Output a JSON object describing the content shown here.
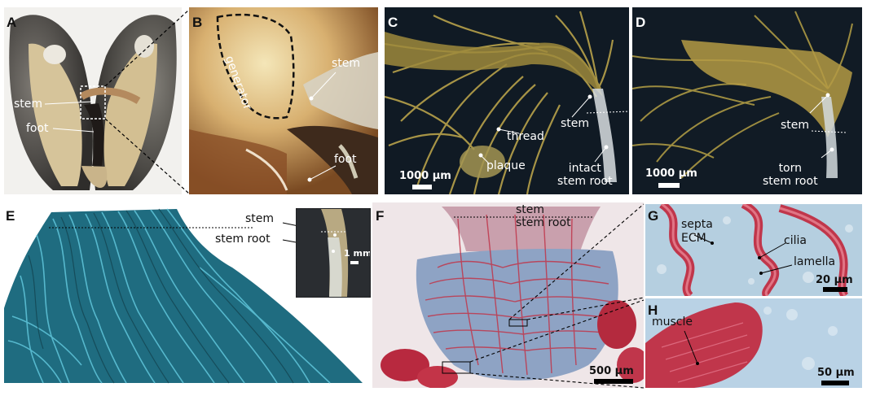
{
  "panels": [
    {
      "letter": "A",
      "labels": [
        "stem",
        "foot"
      ]
    },
    {
      "letter": "B",
      "labels": [
        "generator",
        "stem",
        "foot"
      ]
    },
    {
      "letter": "C",
      "labels": [
        "thread",
        "stem",
        "plaque",
        "intact\nstem root"
      ],
      "scale_bar": "1000 μm"
    },
    {
      "letter": "D",
      "labels": [
        "stem",
        "torn\nstem root"
      ],
      "scale_bar": "1000 μm"
    },
    {
      "letter": "E",
      "labels": [
        "stem",
        "stem root"
      ],
      "inset_scale_bar": "1 mm"
    },
    {
      "letter": "F",
      "labels": [
        "stem",
        "stem root"
      ],
      "scale_bar": "500 μm"
    },
    {
      "letter": "G",
      "labels": [
        "septa",
        "ECM",
        "cilia",
        "lamella"
      ],
      "scale_bar": "20 μm"
    },
    {
      "letter": "H",
      "labels": [
        "muscle"
      ],
      "scale_bar": "50 μm"
    }
  ],
  "colors": {
    "thread_yellow": "#b8a24a",
    "ribbon_teal": "#2a7d92",
    "stain_red": "#c0364b",
    "stain_blue": "#8fb3cf"
  }
}
